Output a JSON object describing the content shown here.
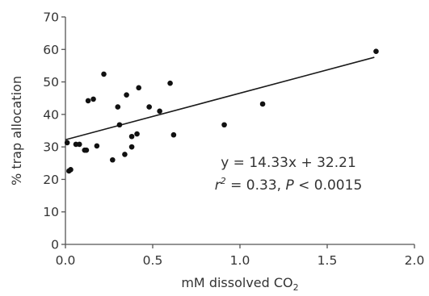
{
  "chart_data": {
    "type": "scatter",
    "title": "",
    "xlabel_prefix": "mM dissolved CO",
    "xlabel_subscript": "2",
    "ylabel": "% trap allocation",
    "xlim": [
      0,
      2.0
    ],
    "ylim": [
      0,
      70
    ],
    "xticks": [
      "0.0",
      "0.5",
      "1.0",
      "1.5",
      "2.0"
    ],
    "yticks": [
      "0",
      "10",
      "20",
      "30",
      "40",
      "50",
      "60",
      "70"
    ],
    "grid": false,
    "points": [
      {
        "x": 0.01,
        "y": 31.3
      },
      {
        "x": 0.02,
        "y": 22.6
      },
      {
        "x": 0.03,
        "y": 23.0
      },
      {
        "x": 0.06,
        "y": 30.8
      },
      {
        "x": 0.08,
        "y": 30.8
      },
      {
        "x": 0.11,
        "y": 29.0
      },
      {
        "x": 0.12,
        "y": 29.0
      },
      {
        "x": 0.13,
        "y": 44.2
      },
      {
        "x": 0.16,
        "y": 44.7
      },
      {
        "x": 0.18,
        "y": 30.3
      },
      {
        "x": 0.22,
        "y": 52.4
      },
      {
        "x": 0.27,
        "y": 26.0
      },
      {
        "x": 0.3,
        "y": 42.3
      },
      {
        "x": 0.31,
        "y": 36.8
      },
      {
        "x": 0.34,
        "y": 27.7
      },
      {
        "x": 0.35,
        "y": 46.0
      },
      {
        "x": 0.38,
        "y": 33.2
      },
      {
        "x": 0.38,
        "y": 30.0
      },
      {
        "x": 0.41,
        "y": 34.0
      },
      {
        "x": 0.42,
        "y": 48.2
      },
      {
        "x": 0.48,
        "y": 42.3
      },
      {
        "x": 0.54,
        "y": 41.0
      },
      {
        "x": 0.6,
        "y": 49.6
      },
      {
        "x": 0.62,
        "y": 33.7
      },
      {
        "x": 0.91,
        "y": 36.8
      },
      {
        "x": 1.13,
        "y": 43.2
      },
      {
        "x": 1.78,
        "y": 59.4
      }
    ],
    "fit": {
      "slope": 14.33,
      "intercept": 32.21,
      "x_range": [
        0.0,
        1.77
      ]
    },
    "annotations": {
      "equation": "y = 14.33x + 32.21",
      "r_symbol": "r",
      "r_exponent": "2",
      "r_value": " = 0.33, ",
      "p_symbol": "P",
      "p_value": " < 0.0015"
    }
  }
}
